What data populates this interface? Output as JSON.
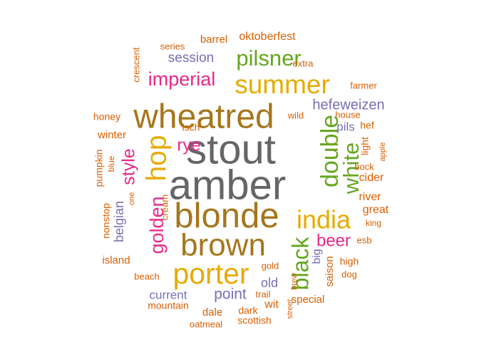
{
  "colors": {
    "background": "#ffffff",
    "orange": "#d95f02",
    "purple": "#7570b3",
    "magenta": "#e7298a",
    "green": "#66a61e",
    "gold": "#e6ab02",
    "brown": "#a6761d",
    "gray": "#666666"
  },
  "words": [
    {
      "text": "stout",
      "color": "gray",
      "vertical": false
    },
    {
      "text": "amber",
      "color": "gray",
      "vertical": false
    },
    {
      "text": "wheatred",
      "color": "brown",
      "vertical": false
    },
    {
      "text": "blonde",
      "color": "brown",
      "vertical": false
    },
    {
      "text": "brown",
      "color": "brown",
      "vertical": false
    },
    {
      "text": "summer",
      "color": "gold",
      "vertical": false
    },
    {
      "text": "porter",
      "color": "gold",
      "vertical": false
    },
    {
      "text": "india",
      "color": "gold",
      "vertical": false
    },
    {
      "text": "hop",
      "color": "gold",
      "vertical": true
    },
    {
      "text": "pilsner",
      "color": "green",
      "vertical": false
    },
    {
      "text": "double",
      "color": "green",
      "vertical": true
    },
    {
      "text": "white",
      "color": "green",
      "vertical": true
    },
    {
      "text": "black",
      "color": "green",
      "vertical": true
    },
    {
      "text": "golden",
      "color": "magenta",
      "vertical": true
    },
    {
      "text": "imperial",
      "color": "magenta",
      "vertical": false
    },
    {
      "text": "beer",
      "color": "magenta",
      "vertical": false
    },
    {
      "text": "style",
      "color": "magenta",
      "vertical": true
    },
    {
      "text": "rye",
      "color": "magenta",
      "vertical": false
    },
    {
      "text": "hefeweizen",
      "color": "purple",
      "vertical": false
    },
    {
      "text": "session",
      "color": "purple",
      "vertical": false
    },
    {
      "text": "point",
      "color": "purple",
      "vertical": false
    },
    {
      "text": "belgian",
      "color": "purple",
      "vertical": true
    },
    {
      "text": "current",
      "color": "purple",
      "vertical": false
    },
    {
      "text": "old",
      "color": "purple",
      "vertical": false
    },
    {
      "text": "big",
      "color": "purple",
      "vertical": true
    },
    {
      "text": "pils",
      "color": "purple",
      "vertical": false
    },
    {
      "text": "oktoberfest",
      "color": "orange",
      "vertical": false
    },
    {
      "text": "barrel",
      "color": "orange",
      "vertical": false
    },
    {
      "text": "series",
      "color": "orange",
      "vertical": false
    },
    {
      "text": "crescent",
      "color": "orange",
      "vertical": true
    },
    {
      "text": "extra",
      "color": "orange",
      "vertical": false
    },
    {
      "text": "farmer",
      "color": "orange",
      "vertical": false
    },
    {
      "text": "honey",
      "color": "orange",
      "vertical": false
    },
    {
      "text": "wild",
      "color": "orange",
      "vertical": false
    },
    {
      "text": "house",
      "color": "orange",
      "vertical": false
    },
    {
      "text": "hef",
      "color": "orange",
      "vertical": false
    },
    {
      "text": "winter",
      "color": "orange",
      "vertical": false
    },
    {
      "text": "lsch",
      "color": "orange",
      "vertical": false
    },
    {
      "text": "light",
      "color": "orange",
      "vertical": true
    },
    {
      "text": "apple",
      "color": "orange",
      "vertical": true
    },
    {
      "text": "pumpkin",
      "color": "orange",
      "vertical": true
    },
    {
      "text": "blue",
      "color": "orange",
      "vertical": true
    },
    {
      "text": "bock",
      "color": "orange",
      "vertical": false
    },
    {
      "text": "cider",
      "color": "orange",
      "vertical": false
    },
    {
      "text": "one",
      "color": "orange",
      "vertical": true
    },
    {
      "text": "cream",
      "color": "orange",
      "vertical": true
    },
    {
      "text": "river",
      "color": "orange",
      "vertical": false
    },
    {
      "text": "great",
      "color": "orange",
      "vertical": false
    },
    {
      "text": "nonstop",
      "color": "orange",
      "vertical": true
    },
    {
      "text": "king",
      "color": "orange",
      "vertical": false
    },
    {
      "text": "esb",
      "color": "orange",
      "vertical": false
    },
    {
      "text": "island",
      "color": "orange",
      "vertical": false
    },
    {
      "text": "gold",
      "color": "orange",
      "vertical": false
    },
    {
      "text": "saison",
      "color": "orange",
      "vertical": true
    },
    {
      "text": "high",
      "color": "orange",
      "vertical": false
    },
    {
      "text": "beach",
      "color": "orange",
      "vertical": false
    },
    {
      "text": "dog",
      "color": "orange",
      "vertical": false
    },
    {
      "text": "brew",
      "color": "orange",
      "vertical": true
    },
    {
      "text": "trail",
      "color": "orange",
      "vertical": false
    },
    {
      "text": "special",
      "color": "orange",
      "vertical": false
    },
    {
      "text": "mountain",
      "color": "orange",
      "vertical": false
    },
    {
      "text": "wit",
      "color": "orange",
      "vertical": false
    },
    {
      "text": "dale",
      "color": "orange",
      "vertical": false
    },
    {
      "text": "dark",
      "color": "orange",
      "vertical": false
    },
    {
      "text": "street",
      "color": "orange",
      "vertical": true
    },
    {
      "text": "scottish",
      "color": "orange",
      "vertical": false
    },
    {
      "text": "oatmeal",
      "color": "orange",
      "vertical": false
    }
  ]
}
